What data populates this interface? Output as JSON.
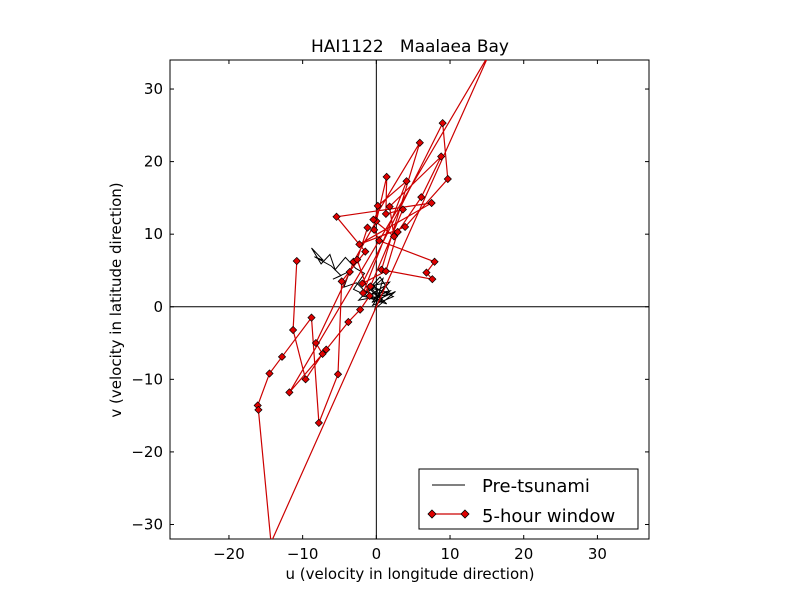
{
  "chart_data": {
    "type": "line",
    "title": "HAI1122   Maalaea Bay",
    "xlabel": "u (velocity in longitude direction)",
    "ylabel": "v (velocity in latitude direction)",
    "xlim": [
      -28,
      37
    ],
    "ylim": [
      -32,
      34
    ],
    "xticks": [
      -20,
      -10,
      0,
      10,
      20,
      30
    ],
    "yticks": [
      -30,
      -20,
      -10,
      0,
      10,
      20,
      30
    ],
    "xtick_labels": [
      "−20",
      "−10",
      "0",
      "10",
      "20",
      "30"
    ],
    "ytick_labels": [
      "−30",
      "−20",
      "−10",
      "0",
      "10",
      "20",
      "30"
    ],
    "zero_lines": true,
    "grid": false,
    "legend_position": "lower-right",
    "series": [
      {
        "name": "Pre-tsunami",
        "color": "#000000",
        "marker": "none",
        "x": [
          0.3,
          -1.2,
          1.8,
          -0.6,
          2.6,
          -0.2,
          0.9,
          -1.8,
          1.4,
          -0.8,
          2.1,
          -2.4,
          0.5,
          1.7,
          -0.4,
          -3.1,
          -1.6,
          -2.8,
          -4.2,
          -5.6,
          -6.3,
          -7.5,
          -8.8,
          -7.2,
          -8.4,
          -6.1,
          -4.8,
          -5.9,
          -3.6,
          -4.4,
          -2.7,
          -1.3,
          -0.2,
          0.8,
          -0.9,
          1.2,
          -0.5,
          2.3,
          0.1,
          -1.1,
          0.6,
          1.9,
          -0.7,
          0.4
        ],
        "y": [
          1.2,
          2.8,
          3.4,
          0.6,
          2.1,
          -0.3,
          3.9,
          1.5,
          0.4,
          2.6,
          1.8,
          0.9,
          4.1,
          2.2,
          1.1,
          2.4,
          4.6,
          5.3,
          6.8,
          5.1,
          7.2,
          5.9,
          8.1,
          6.4,
          6.9,
          5.6,
          4.3,
          3.8,
          4.9,
          2.7,
          3.3,
          1.9,
          2.8,
          0.7,
          1.6,
          2.9,
          0.2,
          1.4,
          2.5,
          3.1,
          1.0,
          2.2,
          1.7,
          2.4
        ]
      },
      {
        "name": "5-hour window",
        "color": "#cc0000",
        "marker": "diamond",
        "x": [
          -10.8,
          -11.3,
          -9.6,
          -7.3,
          -8.2,
          -3.6,
          -3.1,
          0.0,
          1.4,
          1.3,
          3.6,
          -0.8,
          -1.8,
          4.1,
          0.2,
          -0.3,
          0.4,
          7.9,
          6.8,
          7.6,
          0.7,
          5.9,
          -0.4,
          2.4,
          1.8,
          8.8,
          6.1,
          2.9,
          1.3,
          -1.9,
          9.0,
          9.7,
          3.9,
          -2.3,
          7.5,
          -5.4,
          -1.5,
          -4.7,
          -5.2,
          -7.8,
          -8.8,
          -12.8,
          -14.5,
          -16.1,
          -16.0,
          -14.3,
          15.3,
          -11.8,
          -6.8,
          -3.8,
          -2.2,
          -0.9,
          -2.6,
          -1.2
        ],
        "y": [
          6.3,
          -3.2,
          -10.0,
          -6.5,
          -5.0,
          4.8,
          6.2,
          11.8,
          17.9,
          12.8,
          13.4,
          2.8,
          1.9,
          17.3,
          13.9,
          10.6,
          9.1,
          6.2,
          4.7,
          3.8,
          5.1,
          22.6,
          12.0,
          9.7,
          13.8,
          20.7,
          15.1,
          10.3,
          4.9,
          3.2,
          25.3,
          17.6,
          11.0,
          8.6,
          14.3,
          12.4,
          7.6,
          3.5,
          -9.3,
          -16.0,
          -1.5,
          -6.9,
          -9.2,
          -13.6,
          -14.2,
          -32.5,
          34.8,
          -11.8,
          -5.9,
          -2.1,
          -0.4,
          1.5,
          6.5,
          10.9
        ]
      }
    ]
  }
}
